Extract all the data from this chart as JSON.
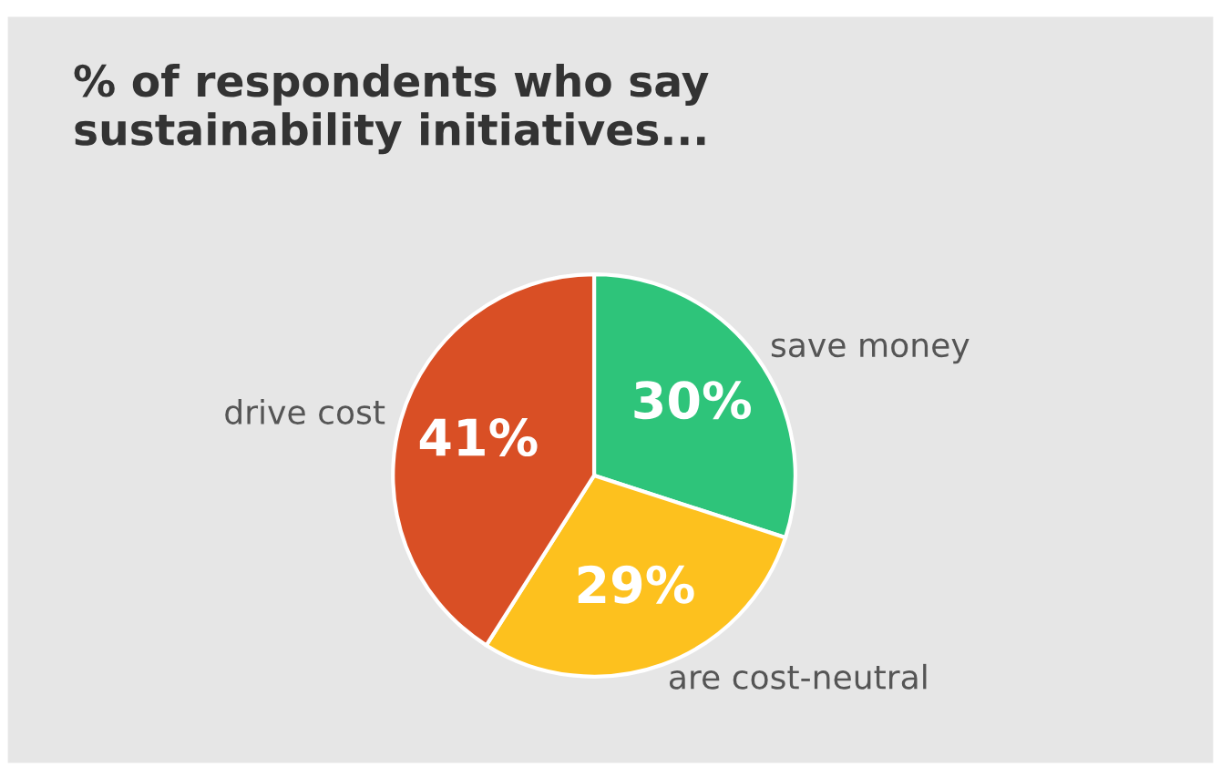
{
  "chart_data": {
    "type": "pie",
    "title": "% of respondents who say\nsustainability initiatives...",
    "categories": [
      "save money",
      "are cost-neutral",
      "drive cost"
    ],
    "values": [
      30,
      29,
      41
    ],
    "colors": [
      "#2ec47a",
      "#fdc11e",
      "#d94f25"
    ],
    "value_labels": [
      "30%",
      "29%",
      "41%"
    ],
    "legend": false
  }
}
